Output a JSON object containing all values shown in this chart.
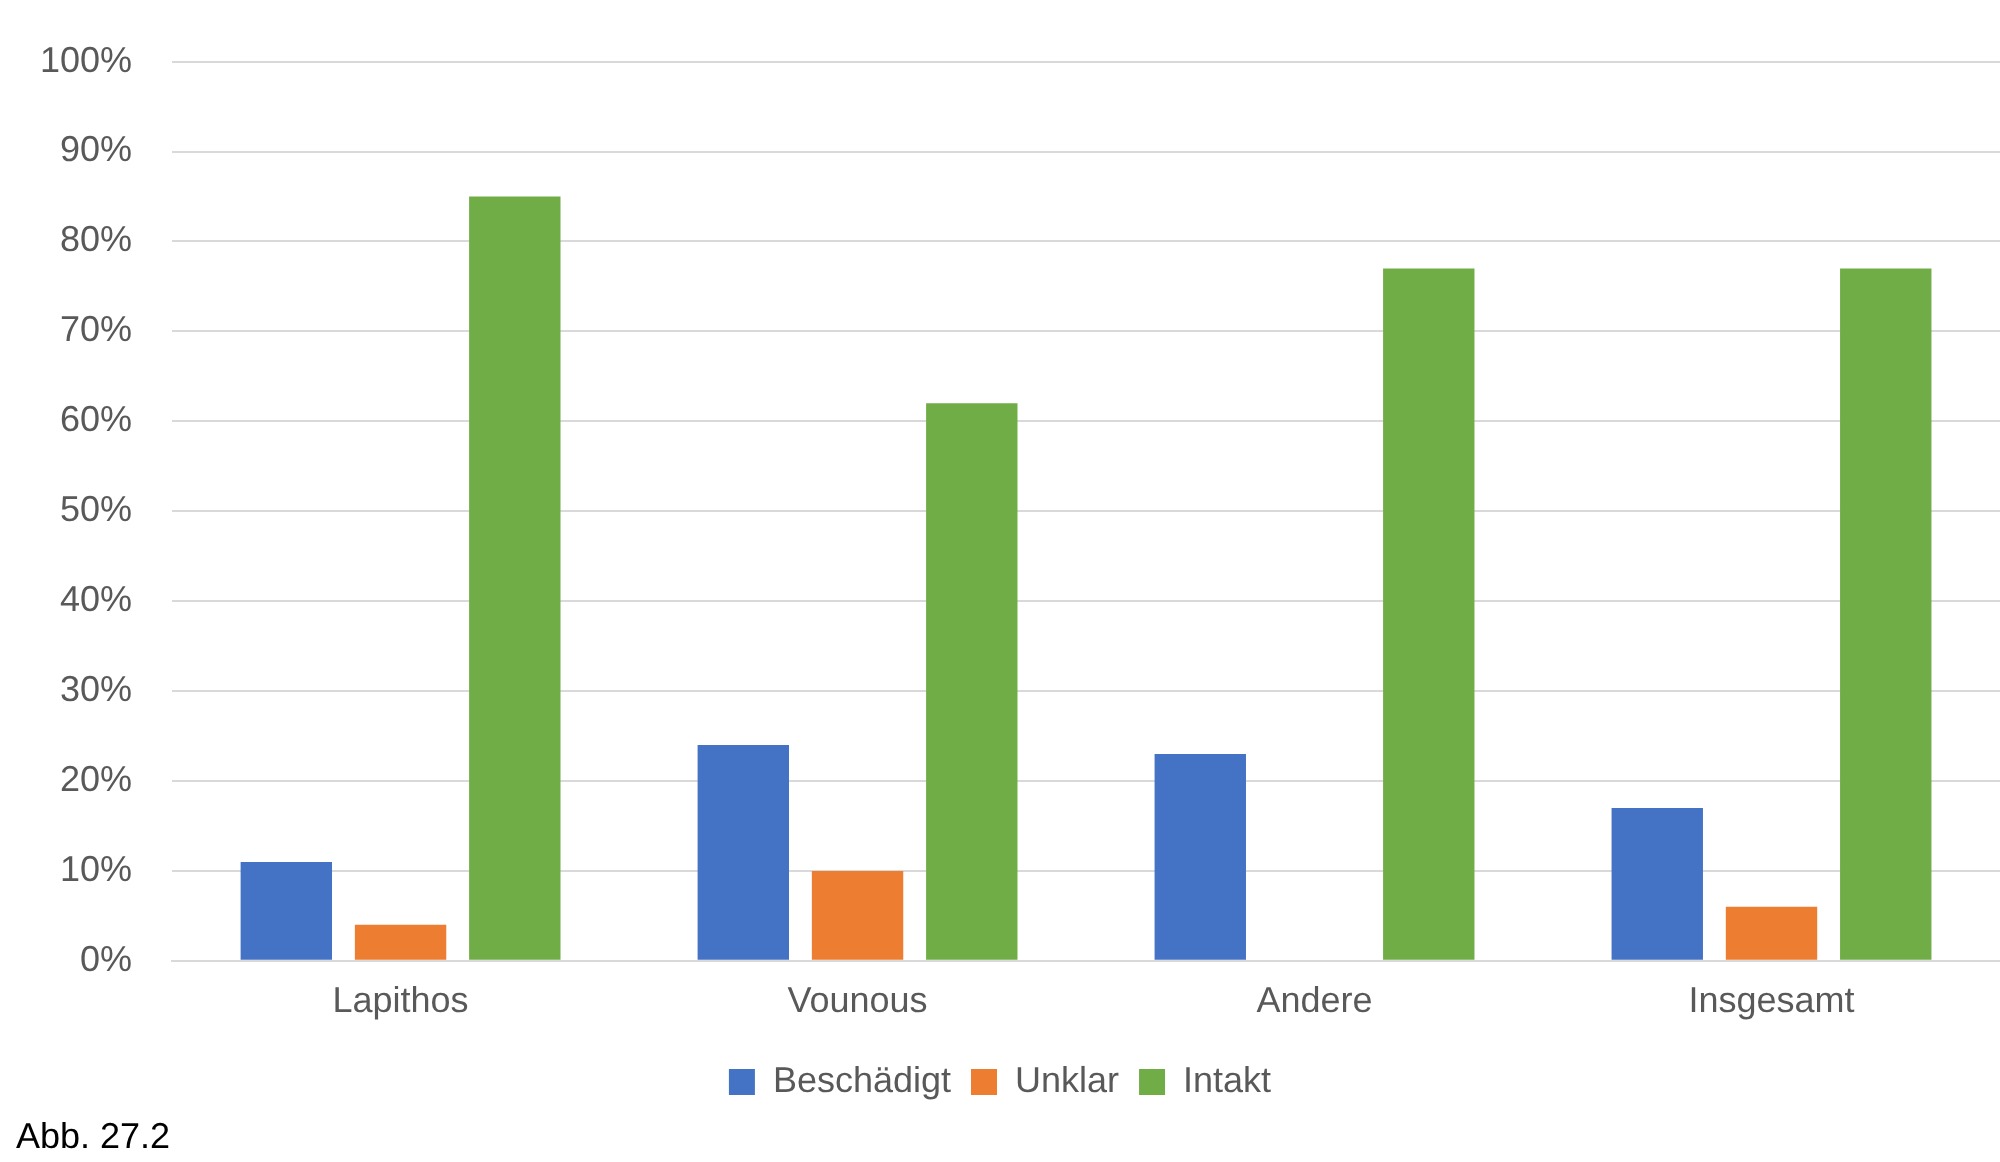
{
  "chart_data": {
    "type": "bar",
    "categories": [
      "Lapithos",
      "Vounous",
      "Andere",
      "Insgesamt"
    ],
    "series": [
      {
        "name": "Beschädigt",
        "color": "#4472c4",
        "values": [
          11,
          24,
          23,
          17
        ]
      },
      {
        "name": "Unklar",
        "color": "#ed7d31",
        "values": [
          4,
          10,
          0,
          6
        ]
      },
      {
        "name": "Intakt",
        "color": "#70ad47",
        "values": [
          85,
          62,
          77,
          77
        ]
      }
    ],
    "ylim": [
      0,
      100
    ],
    "yticks": [
      {
        "value": 0,
        "label": "0%"
      },
      {
        "value": 10,
        "label": "10%"
      },
      {
        "value": 20,
        "label": "20%"
      },
      {
        "value": 30,
        "label": "30%"
      },
      {
        "value": 40,
        "label": "40%"
      },
      {
        "value": 50,
        "label": "50%"
      },
      {
        "value": 60,
        "label": "60%"
      },
      {
        "value": 70,
        "label": "70%"
      },
      {
        "value": 80,
        "label": "80%"
      },
      {
        "value": 90,
        "label": "90%"
      },
      {
        "value": 100,
        "label": "100%"
      }
    ],
    "grid": "y",
    "legend": "bottom",
    "annotations": [
      "Abb. 27.2"
    ]
  }
}
